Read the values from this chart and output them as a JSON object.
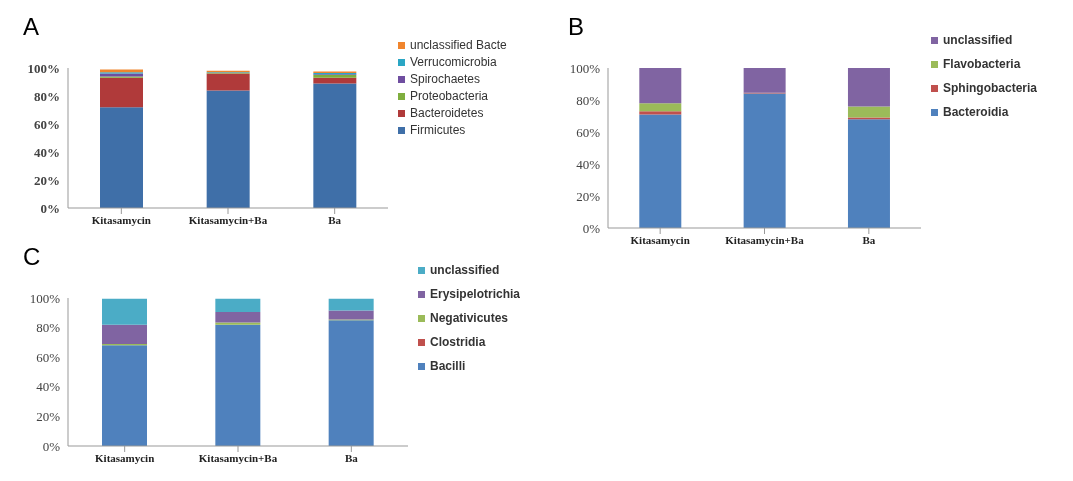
{
  "chart_data": [
    {
      "type": "bar",
      "title": "A",
      "stacked": true,
      "categories": [
        "Kitasamycin",
        "Kitasamycin+Ba",
        "Ba"
      ],
      "ylim": [
        0,
        100
      ],
      "yticks": [
        {
          "value": 0,
          "label": "0%"
        },
        {
          "value": 20,
          "label": "20%"
        },
        {
          "value": 40,
          "label": "40%"
        },
        {
          "value": 60,
          "label": "60%"
        },
        {
          "value": 80,
          "label": "80%"
        },
        {
          "value": 100,
          "label": "100%"
        }
      ],
      "grid": false,
      "legend": "right",
      "series": [
        {
          "name": "Firmicutes",
          "color": "#3f6fa8",
          "values": [
            72,
            84,
            89
          ]
        },
        {
          "name": "Bacteroidetes",
          "color": "#b03a3a",
          "values": [
            21,
            12,
            4
          ]
        },
        {
          "name": "Proteobacteria",
          "color": "#7fae3e",
          "values": [
            1,
            0.5,
            2
          ]
        },
        {
          "name": "Spirochaetes",
          "color": "#6f4ea0",
          "values": [
            2,
            0,
            0.5
          ]
        },
        {
          "name": "Verrucomicrobia",
          "color": "#2aa6c4",
          "values": [
            1,
            0.5,
            1
          ]
        },
        {
          "name": "unclassified Bacte",
          "color": "#f0852d",
          "values": [
            2,
            1,
            1
          ]
        }
      ]
    },
    {
      "type": "bar",
      "title": "B",
      "stacked": true,
      "categories": [
        "Kitasamycin",
        "Kitasamycin+Ba",
        "Ba"
      ],
      "ylim": [
        0,
        100
      ],
      "yticks": [
        {
          "value": 0,
          "label": "0%"
        },
        {
          "value": 20,
          "label": "20%"
        },
        {
          "value": 40,
          "label": "40%"
        },
        {
          "value": 60,
          "label": "60%"
        },
        {
          "value": 80,
          "label": "80%"
        },
        {
          "value": 100,
          "label": "100%"
        }
      ],
      "grid": false,
      "legend": "right",
      "series": [
        {
          "name": "Bacteroidia",
          "color": "#4f81bd",
          "values": [
            71,
            84,
            68
          ]
        },
        {
          "name": "Sphingobacteria",
          "color": "#c0504d",
          "values": [
            2,
            0.5,
            1
          ]
        },
        {
          "name": "Flavobacteria",
          "color": "#9bbb59",
          "values": [
            5,
            0,
            7
          ]
        },
        {
          "name": "unclassified",
          "color": "#8064a2",
          "values": [
            22,
            15.5,
            24
          ]
        }
      ]
    },
    {
      "type": "bar",
      "title": "C",
      "stacked": true,
      "categories": [
        "Kitasamycin",
        "Kitasamycin+Ba",
        "Ba"
      ],
      "ylim": [
        0,
        100
      ],
      "yticks": [
        {
          "value": 0,
          "label": "0%"
        },
        {
          "value": 20,
          "label": "20%"
        },
        {
          "value": 40,
          "label": "40%"
        },
        {
          "value": 60,
          "label": "60%"
        },
        {
          "value": 80,
          "label": "80%"
        },
        {
          "value": 100,
          "label": "100%"
        }
      ],
      "grid": false,
      "legend": "right",
      "series": [
        {
          "name": "Bacilli",
          "color": "#4f81bd",
          "values": [
            68,
            82,
            85
          ]
        },
        {
          "name": "Clostridia",
          "color": "#c0504d",
          "values": [
            null,
            null,
            null
          ]
        },
        {
          "name": "Negativicutes",
          "color": "#9bbb59",
          "values": [
            1,
            1.5,
            0.5
          ]
        },
        {
          "name": "Erysipelotrichia",
          "color": "#8064a2",
          "values": [
            13,
            7,
            6
          ]
        },
        {
          "name": "unclassified",
          "color": "#4bacc6",
          "values": [
            17.5,
            9,
            8
          ]
        }
      ]
    }
  ]
}
